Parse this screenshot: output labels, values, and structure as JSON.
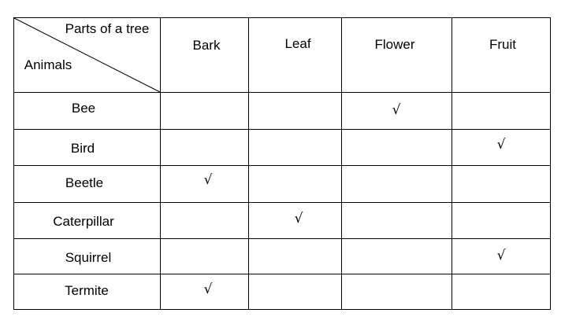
{
  "table": {
    "corner": {
      "column_header_label": "Parts of a tree",
      "row_header_label": "Animals"
    },
    "columns": [
      "Bark",
      "Leaf",
      "Flower",
      "Fruit"
    ],
    "check_mark": "√",
    "rows": [
      {
        "animal": "Bee",
        "marks": [
          "",
          "",
          "√",
          ""
        ]
      },
      {
        "animal": "Bird",
        "marks": [
          "",
          "",
          "",
          "√"
        ]
      },
      {
        "animal": "Beetle",
        "marks": [
          "√",
          "",
          "",
          ""
        ]
      },
      {
        "animal": "Caterpillar",
        "marks": [
          "",
          "√",
          "",
          ""
        ]
      },
      {
        "animal": "Squirrel",
        "marks": [
          "",
          "",
          "",
          "√"
        ]
      },
      {
        "animal": "Termite",
        "marks": [
          "√",
          "",
          "",
          ""
        ]
      }
    ]
  }
}
